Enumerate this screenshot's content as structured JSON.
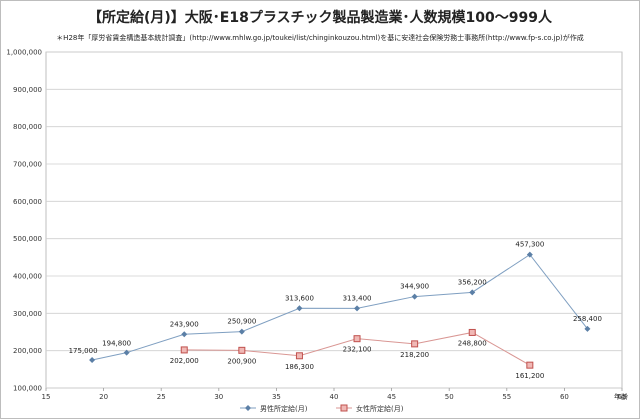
{
  "chart_data": {
    "type": "line",
    "title": "【所定給(月)】大阪･E18プラスチック製品製造業･人数規模100～999人",
    "subtitle": "＊H28年「厚労省賃金構造基本統計調査」(http://www.mhlw.go.jp/toukei/list/chinginkouzou.html)を基に安達社会保険労務士事務所(http://www.fp-s.co.jp)が作成",
    "xlabel": "年齢",
    "xlim": [
      15,
      65
    ],
    "ylim": [
      100000,
      1000000
    ],
    "x_ticks": [
      "15",
      "20",
      "25",
      "30",
      "35",
      "40",
      "45",
      "50",
      "55",
      "60",
      "65"
    ],
    "y_ticks": [
      "100,000",
      "200,000",
      "300,000",
      "400,000",
      "500,000",
      "600,000",
      "700,000",
      "800,000",
      "900,000",
      "1,000,000"
    ],
    "grid": "horizontal",
    "legend_position": "bottom",
    "series": [
      {
        "name": "男性所定給(月)",
        "color": "#5b7fa6",
        "marker": "diamond",
        "points": [
          {
            "x": 19,
            "y": 175000,
            "label": "175,000"
          },
          {
            "x": 22,
            "y": 194800,
            "label": "194,800"
          },
          {
            "x": 27,
            "y": 243900,
            "label": "243,900"
          },
          {
            "x": 32,
            "y": 250900,
            "label": "250,900"
          },
          {
            "x": 37,
            "y": 313600,
            "label": "313,600"
          },
          {
            "x": 42,
            "y": 313400,
            "label": "313,400"
          },
          {
            "x": 47,
            "y": 344900,
            "label": "344,900"
          },
          {
            "x": 52,
            "y": 356200,
            "label": "356,200"
          },
          {
            "x": 57,
            "y": 457300,
            "label": "457,300"
          },
          {
            "x": 62,
            "y": 258400,
            "label": "258,400"
          }
        ]
      },
      {
        "name": "女性所定給(月)",
        "color": "#c0504d",
        "marker": "square",
        "points": [
          {
            "x": 27,
            "y": 202000,
            "label": "202,000"
          },
          {
            "x": 32,
            "y": 200900,
            "label": "200,900"
          },
          {
            "x": 37,
            "y": 186300,
            "label": "186,300"
          },
          {
            "x": 42,
            "y": 232100,
            "label": "232,100"
          },
          {
            "x": 47,
            "y": 218200,
            "label": "218,200"
          },
          {
            "x": 52,
            "y": 248800,
            "label": "248,800"
          },
          {
            "x": 57,
            "y": 161200,
            "label": "161,200"
          }
        ]
      }
    ]
  }
}
